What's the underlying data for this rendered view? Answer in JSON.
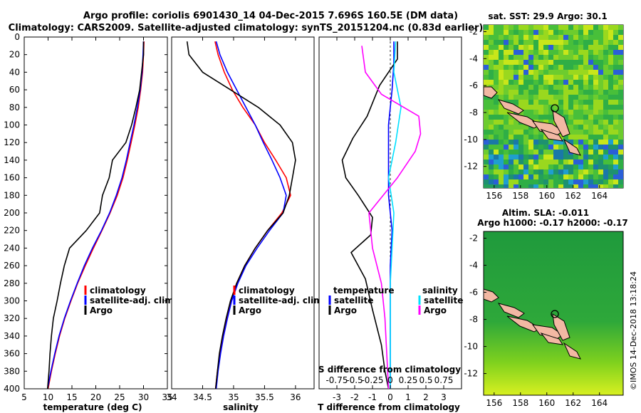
{
  "header": {
    "line1": "Argo profile: coriolis 6901430_14 04-Dec-2015 7.696S 160.5E (DM data)",
    "line2": "Climatology: CARS2009. Satellite-adjusted climatology: synTS_20151204.nc (0.83d earlier)"
  },
  "watermark": "©IMOS 14-Dec-2018 13:18:24",
  "colors": {
    "climatology": "#ff0000",
    "satellite": "#0000ff",
    "argo": "#000000",
    "satellite_sal": "#00e0ff",
    "argo_sal": "#ff00ff",
    "map_high": "#1a9a3a",
    "map_low": "#00bfff"
  },
  "chart_data": [
    {
      "type": "line",
      "name": "temperature",
      "xlabel": "temperature (deg C)",
      "ylabel": "",
      "xlim": [
        5,
        35
      ],
      "ylim": [
        0,
        400
      ],
      "y_inverted": true,
      "xticks": [
        "5",
        "10",
        "15",
        "20",
        "25",
        "30",
        "35"
      ],
      "yticks": [
        "0",
        "20",
        "40",
        "60",
        "80",
        "100",
        "120",
        "140",
        "160",
        "180",
        "200",
        "220",
        "240",
        "260",
        "280",
        "300",
        "320",
        "340",
        "360",
        "380",
        "400"
      ],
      "legend": [
        "climatology",
        "satellite-adj. clim.",
        "Argo"
      ],
      "legend_position": "bottom-right",
      "series": [
        {
          "name": "climatology",
          "color": "#ff0000",
          "points": [
            [
              30.1,
              5
            ],
            [
              30.0,
              20
            ],
            [
              29.8,
              40
            ],
            [
              29.4,
              60
            ],
            [
              28.9,
              80
            ],
            [
              28.2,
              100
            ],
            [
              27.4,
              120
            ],
            [
              26.6,
              140
            ],
            [
              25.7,
              160
            ],
            [
              24.5,
              180
            ],
            [
              23.0,
              200
            ],
            [
              21.3,
              220
            ],
            [
              19.5,
              240
            ],
            [
              17.8,
              260
            ],
            [
              16.2,
              280
            ],
            [
              14.8,
              300
            ],
            [
              13.5,
              320
            ],
            [
              12.4,
              340
            ],
            [
              11.5,
              360
            ],
            [
              10.7,
              380
            ],
            [
              10.0,
              400
            ]
          ]
        },
        {
          "name": "satellite-adj. clim.",
          "color": "#0000ff",
          "points": [
            [
              30.0,
              5
            ],
            [
              29.9,
              20
            ],
            [
              29.7,
              40
            ],
            [
              29.3,
              60
            ],
            [
              28.7,
              80
            ],
            [
              28.0,
              100
            ],
            [
              27.2,
              120
            ],
            [
              26.4,
              140
            ],
            [
              25.5,
              160
            ],
            [
              24.3,
              180
            ],
            [
              22.9,
              200
            ],
            [
              21.2,
              220
            ],
            [
              19.3,
              240
            ],
            [
              17.6,
              260
            ],
            [
              16.1,
              280
            ],
            [
              14.7,
              300
            ],
            [
              13.4,
              320
            ],
            [
              12.3,
              340
            ],
            [
              11.4,
              360
            ],
            [
              10.6,
              380
            ],
            [
              9.9,
              400
            ]
          ]
        },
        {
          "name": "Argo",
          "color": "#000000",
          "points": [
            [
              30.0,
              5
            ],
            [
              30.0,
              20
            ],
            [
              29.6,
              40
            ],
            [
              29.2,
              60
            ],
            [
              28.4,
              80
            ],
            [
              27.5,
              100
            ],
            [
              26.3,
              120
            ],
            [
              23.5,
              140
            ],
            [
              22.8,
              160
            ],
            [
              21.4,
              180
            ],
            [
              20.8,
              200
            ],
            [
              18.0,
              220
            ],
            [
              14.5,
              240
            ],
            [
              13.4,
              260
            ],
            [
              12.6,
              280
            ],
            [
              11.9,
              300
            ],
            [
              11.1,
              320
            ],
            [
              10.7,
              340
            ],
            [
              10.4,
              360
            ],
            [
              10.2,
              380
            ],
            [
              9.9,
              400
            ]
          ]
        }
      ]
    },
    {
      "type": "line",
      "name": "salinity",
      "xlabel": "salinity",
      "ylabel": "",
      "xlim": [
        34,
        36.3
      ],
      "ylim": [
        0,
        400
      ],
      "y_inverted": true,
      "xticks": [
        "34",
        "34.5",
        "35",
        "35.5",
        "36"
      ],
      "legend": [
        "climatology",
        "satellite-adj. clim.",
        "Argo"
      ],
      "legend_position": "bottom-right",
      "series": [
        {
          "name": "climatology",
          "color": "#ff0000",
          "points": [
            [
              34.7,
              5
            ],
            [
              34.75,
              20
            ],
            [
              34.85,
              40
            ],
            [
              34.98,
              60
            ],
            [
              35.15,
              80
            ],
            [
              35.35,
              100
            ],
            [
              35.5,
              120
            ],
            [
              35.68,
              140
            ],
            [
              35.85,
              160
            ],
            [
              35.92,
              180
            ],
            [
              35.78,
              200
            ],
            [
              35.55,
              220
            ],
            [
              35.35,
              240
            ],
            [
              35.18,
              260
            ],
            [
              35.05,
              280
            ],
            [
              34.96,
              300
            ],
            [
              34.89,
              320
            ],
            [
              34.83,
              340
            ],
            [
              34.78,
              360
            ],
            [
              34.74,
              380
            ],
            [
              34.71,
              400
            ]
          ]
        },
        {
          "name": "satellite-adj. clim.",
          "color": "#0000ff",
          "points": [
            [
              34.72,
              5
            ],
            [
              34.78,
              20
            ],
            [
              34.9,
              40
            ],
            [
              35.05,
              60
            ],
            [
              35.2,
              80
            ],
            [
              35.35,
              100
            ],
            [
              35.48,
              120
            ],
            [
              35.62,
              140
            ],
            [
              35.75,
              160
            ],
            [
              35.85,
              180
            ],
            [
              35.8,
              200
            ],
            [
              35.58,
              220
            ],
            [
              35.38,
              240
            ],
            [
              35.2,
              260
            ],
            [
              35.07,
              280
            ],
            [
              34.97,
              300
            ],
            [
              34.9,
              320
            ],
            [
              34.84,
              340
            ],
            [
              34.79,
              360
            ],
            [
              34.75,
              380
            ],
            [
              34.72,
              400
            ]
          ]
        },
        {
          "name": "Argo",
          "color": "#000000",
          "points": [
            [
              34.25,
              5
            ],
            [
              34.28,
              20
            ],
            [
              34.5,
              40
            ],
            [
              34.95,
              60
            ],
            [
              35.4,
              80
            ],
            [
              35.75,
              100
            ],
            [
              35.95,
              120
            ],
            [
              36.0,
              140
            ],
            [
              35.95,
              160
            ],
            [
              35.9,
              180
            ],
            [
              35.8,
              200
            ],
            [
              35.55,
              220
            ],
            [
              35.35,
              240
            ],
            [
              35.18,
              260
            ],
            [
              35.05,
              280
            ],
            [
              34.95,
              300
            ],
            [
              34.88,
              320
            ],
            [
              34.82,
              340
            ],
            [
              34.77,
              360
            ],
            [
              34.74,
              380
            ],
            [
              34.71,
              400
            ]
          ]
        }
      ]
    },
    {
      "type": "line",
      "name": "difference",
      "xlabel": "T difference from climatology",
      "top_xlabel": "S difference from climatology",
      "xlim": [
        -4,
        4
      ],
      "ylim": [
        0,
        400
      ],
      "y_inverted": true,
      "xticks": [
        "-3",
        "-2",
        "-1",
        "0",
        "1",
        "2",
        "3"
      ],
      "top_xticks": [
        "-0.75",
        "-0.5",
        "-0.25",
        "0",
        "0.25",
        "0.5",
        "0.75"
      ],
      "legend_groups": [
        {
          "title": "temperature",
          "items": [
            "satellite",
            "Argo"
          ]
        },
        {
          "title": "salinity",
          "items": [
            "satellite",
            "Argo"
          ]
        }
      ],
      "series": [
        {
          "name": "T satellite",
          "color": "#0000ff",
          "points": [
            [
              0.2,
              5
            ],
            [
              0.2,
              30
            ],
            [
              0.1,
              60
            ],
            [
              -0.1,
              100
            ],
            [
              -0.1,
              140
            ],
            [
              -0.1,
              180
            ],
            [
              0.1,
              220
            ],
            [
              0.0,
              260
            ],
            [
              0.0,
              300
            ],
            [
              0.0,
              340
            ],
            [
              0.0,
              380
            ],
            [
              0.0,
              400
            ]
          ]
        },
        {
          "name": "T Argo",
          "color": "#000000",
          "points": [
            [
              0.4,
              5
            ],
            [
              0.4,
              25
            ],
            [
              -0.6,
              55
            ],
            [
              -1.3,
              90
            ],
            [
              -2.1,
              115
            ],
            [
              -2.7,
              140
            ],
            [
              -2.5,
              160
            ],
            [
              -1.8,
              180
            ],
            [
              -1.0,
              205
            ],
            [
              -1.1,
              225
            ],
            [
              -2.2,
              245
            ],
            [
              -1.4,
              275
            ],
            [
              -1.0,
              310
            ],
            [
              -0.5,
              350
            ],
            [
              -0.3,
              380
            ],
            [
              -0.1,
              400
            ]
          ]
        },
        {
          "name": "S satellite",
          "color": "#00e0ff",
          "points": [
            [
              0.3,
              5
            ],
            [
              0.2,
              40
            ],
            [
              0.6,
              80
            ],
            [
              0.3,
              120
            ],
            [
              -0.1,
              160
            ],
            [
              0.2,
              200
            ],
            [
              0.1,
              240
            ],
            [
              0.0,
              280
            ],
            [
              0.0,
              320
            ],
            [
              0.0,
              360
            ],
            [
              0.0,
              400
            ]
          ]
        },
        {
          "name": "S Argo",
          "color": "#ff00ff",
          "points": [
            [
              -1.6,
              10
            ],
            [
              -1.4,
              40
            ],
            [
              -0.5,
              65
            ],
            [
              1.6,
              90
            ],
            [
              1.7,
              110
            ],
            [
              1.4,
              130
            ],
            [
              0.4,
              160
            ],
            [
              -1.2,
              200
            ],
            [
              -1.0,
              240
            ],
            [
              -0.5,
              280
            ],
            [
              -0.3,
              320
            ],
            [
              -0.2,
              360
            ],
            [
              -0.1,
              400
            ]
          ]
        }
      ]
    },
    {
      "type": "heatmap",
      "name": "sst-map",
      "title": "sat. SST: 29.9 Argo: 30.1",
      "xticks": [
        "156",
        "158",
        "160",
        "162",
        "164"
      ],
      "yticks": [
        "-2",
        "-4",
        "-6",
        "-8",
        "-10",
        "-12"
      ],
      "marker": "Argo position"
    },
    {
      "type": "heatmap",
      "name": "sla-map",
      "title_line1": "Altim. SLA: -0.011",
      "title_line2": "Argo h1000: -0.17 h2000: -0.17",
      "xticks": [
        "156",
        "158",
        "160",
        "162",
        "164"
      ],
      "yticks": [
        "-2",
        "-4",
        "-6",
        "-8",
        "-10",
        "-12"
      ],
      "marker": "Argo position"
    }
  ]
}
